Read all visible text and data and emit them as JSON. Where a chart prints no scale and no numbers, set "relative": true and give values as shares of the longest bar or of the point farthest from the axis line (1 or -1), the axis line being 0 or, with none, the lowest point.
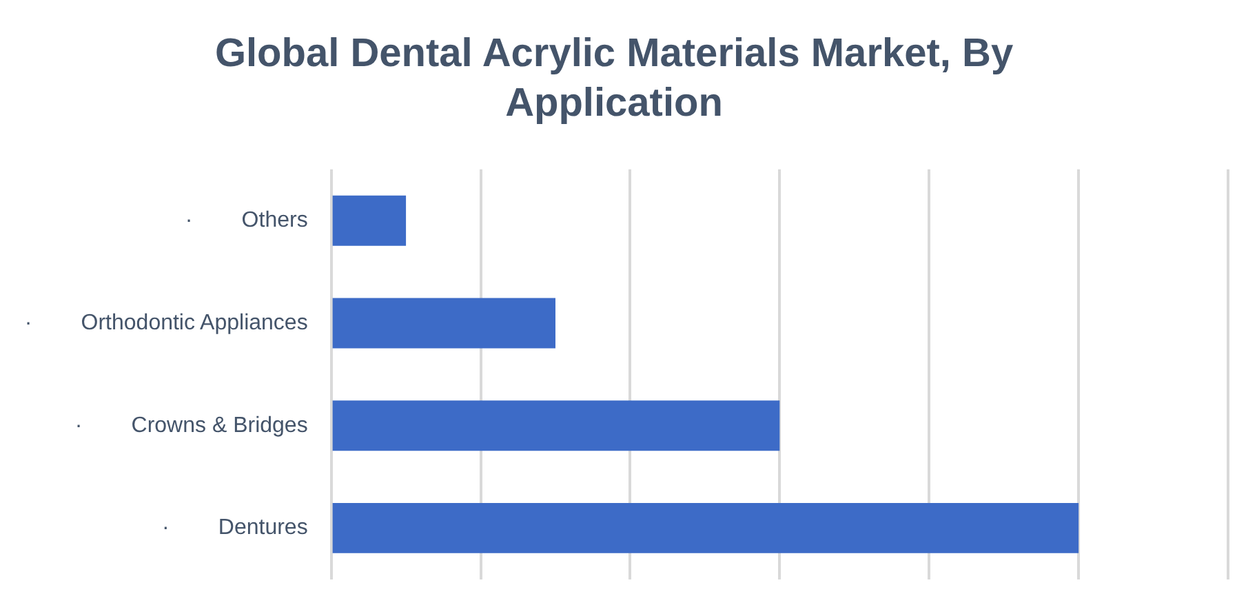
{
  "chart_data": {
    "type": "bar",
    "orientation": "horizontal",
    "relative": true,
    "title": "Global Dental Acrylic Materials Market, By Application",
    "categories": [
      "·        Others",
      "·        Orthodontic Appliances",
      "·        Crowns & Bridges",
      "·        Dentures"
    ],
    "values": [
      0.1,
      0.3,
      0.6,
      1
    ],
    "color": "#3d6bc7",
    "grid": "x",
    "legend": false
  }
}
